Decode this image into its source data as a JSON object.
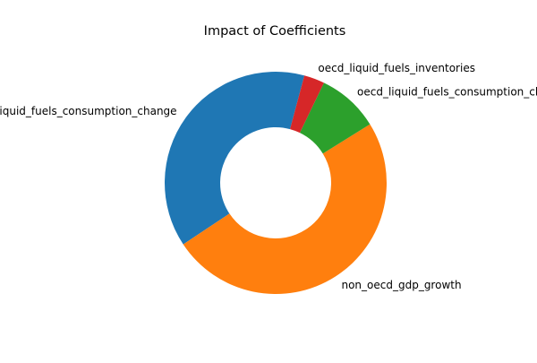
{
  "chart_data": {
    "type": "pie",
    "donut": true,
    "title": "Impact of Coefficients",
    "slices": [
      {
        "label": "non_oecd_liquid_fuels_consumption_change",
        "value": 38.5,
        "color": "#1f77b4"
      },
      {
        "label": "non_oecd_gdp_growth",
        "value": 49.5,
        "color": "#ff7f0e"
      },
      {
        "label": "oecd_liquid_fuels_consumption_change",
        "value": 9.0,
        "color": "#2ca02c"
      },
      {
        "label": "oecd_liquid_fuels_inventories",
        "value": 3.0,
        "color": "#d62728"
      }
    ]
  }
}
